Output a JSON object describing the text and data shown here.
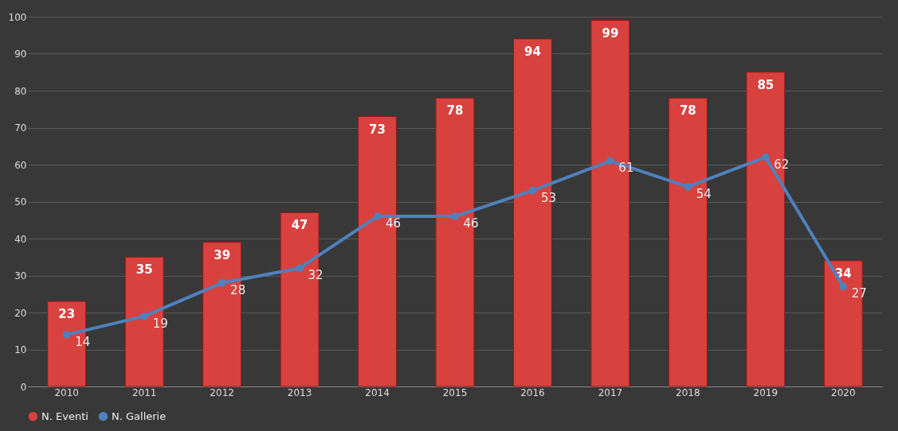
{
  "chart_data": {
    "type": "bar",
    "categories": [
      "2010",
      "2011",
      "2012",
      "2013",
      "2014",
      "2015",
      "2016",
      "2017",
      "2018",
      "2019",
      "2020"
    ],
    "series": [
      {
        "name": "N. Eventi",
        "color": "#d8413e",
        "values": [
          23,
          35,
          39,
          47,
          73,
          78,
          94,
          99,
          78,
          85,
          34
        ]
      },
      {
        "name": "N. Gallerie",
        "type": "line",
        "color": "#4f81bd",
        "values": [
          14,
          19,
          28,
          32,
          46,
          46,
          53,
          61,
          54,
          62,
          27
        ]
      }
    ],
    "ylim": [
      0,
      100
    ],
    "yticks": [
      0,
      10,
      20,
      30,
      40,
      50,
      60,
      70,
      80,
      90,
      100
    ],
    "grid": "y",
    "legend": "bottom",
    "marker": "circle",
    "data_labels": true
  }
}
